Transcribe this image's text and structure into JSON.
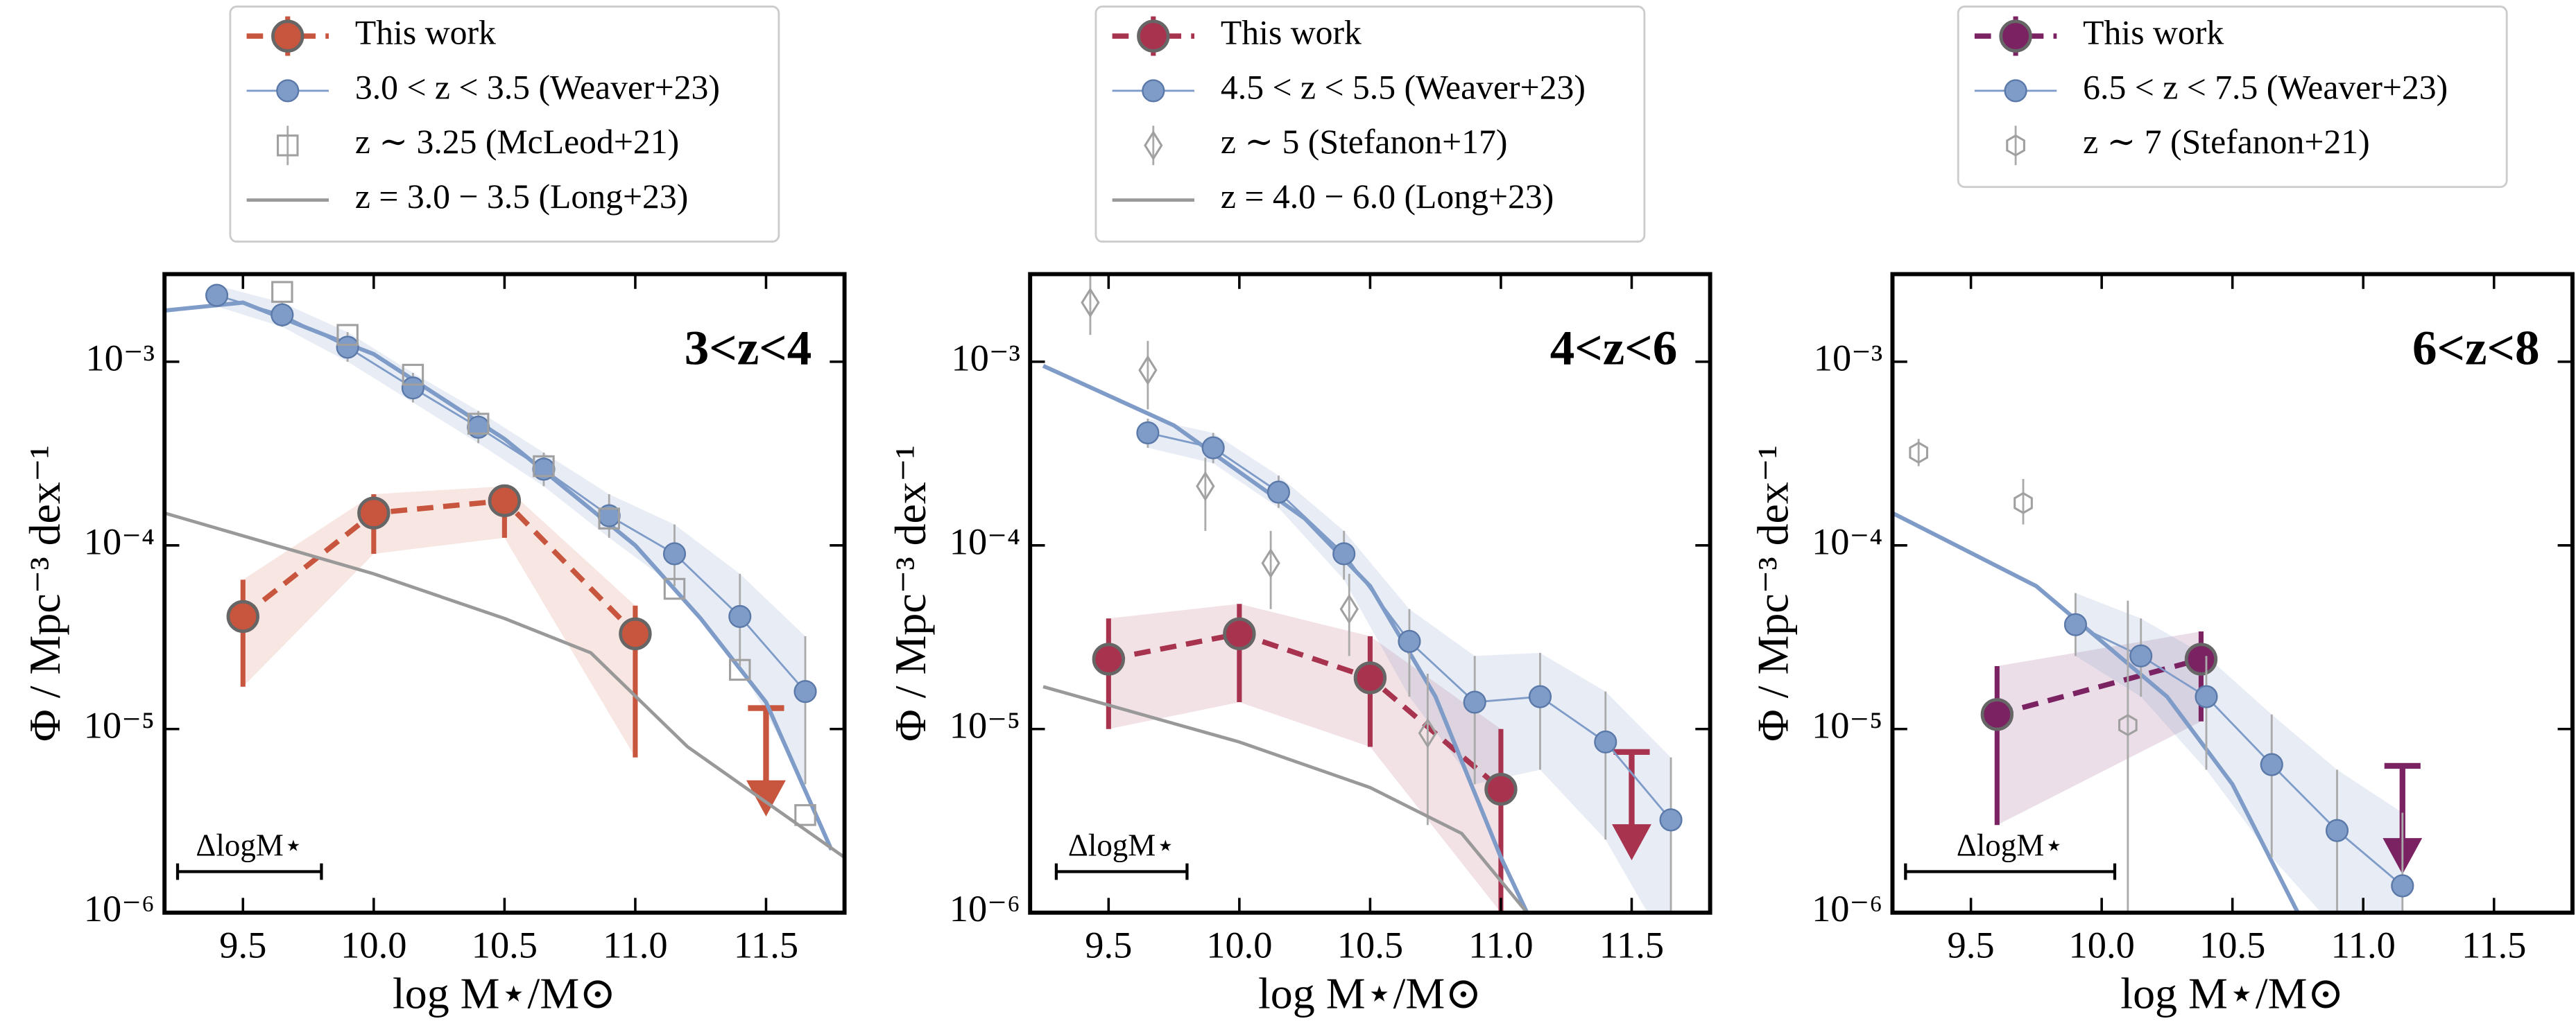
{
  "chart_data": [
    {
      "type": "line",
      "log_y": true,
      "title": "3<z<4",
      "title_color": "#c8553d",
      "x_label": "log M⋆/M⊙",
      "y_label": "Φ / Mpc⁻³ dex⁻¹",
      "xlim": [
        9.2,
        11.8
      ],
      "ylim": [
        1e-06,
        0.003
      ],
      "xticks": [
        9.5,
        {
          "value": 10,
          "label": "10.0"
        },
        10.5,
        {
          "value": 11,
          "label": "11.0"
        },
        11.5
      ],
      "yticks": [
        {
          "value": 1e-06,
          "label": "10⁻⁶"
        },
        {
          "value": 1e-05,
          "label": "10⁻⁵"
        },
        {
          "value": 0.0001,
          "label": "10⁻⁴"
        },
        {
          "value": 0.001,
          "label": "10⁻³"
        }
      ],
      "legend": "above",
      "resolution_bar": {
        "label": "ΔlogM⋆",
        "x": [
          9.25,
          9.8
        ]
      },
      "series": [
        {
          "name": "This work",
          "color": "#c8553d",
          "marker": "circle",
          "line": "dashed",
          "x": [
            9.5,
            10,
            10.5,
            11
          ],
          "values": [
            4.1e-05,
            0.00015,
            0.000175,
            3.3e-05
          ],
          "lower": [
            1.7e-05,
            9e-05,
            0.00011,
            7e-06
          ],
          "upper": [
            6.5e-05,
            0.00019,
            0.00021,
            4.7e-05
          ],
          "upper_limit": {
            "x": 11.5,
            "value": 1.3e-05
          }
        },
        {
          "name": "3.0 < z < 3.5 (Weaver+23)",
          "color": "#7f9cc8",
          "marker": "circle",
          "line": "solid",
          "x": [
            9.4,
            9.65,
            9.9,
            10.15,
            10.4,
            10.65,
            10.9,
            11.15,
            11.4,
            11.65
          ],
          "values": [
            0.0023,
            0.0018,
            0.0012,
            0.00072,
            0.00044,
            0.00026,
            0.000145,
            9e-05,
            4.1e-05,
            1.6e-05
          ],
          "lower": [
            0.002,
            0.00155,
            0.001,
            0.0006,
            0.00036,
            0.00021,
            0.00011,
            6e-05,
            2.2e-05,
            5e-06
          ],
          "upper": [
            0.0026,
            0.0021,
            0.00145,
            0.00087,
            0.00054,
            0.00032,
            0.00019,
            0.00013,
            7e-05,
            3.2e-05
          ],
          "fit": {
            "x": [
              9.2,
              9.5,
              10,
              10.5,
              11,
              11.25,
              11.5,
              11.75
            ],
            "values": [
              0.0019,
              0.0021,
              0.0011,
              0.00038,
              0.0001,
              4e-05,
              1.4e-05,
              2.2e-06
            ]
          }
        },
        {
          "name": "z ∼ 3.25 (McLeod+21)",
          "color": "#a0a0a0",
          "marker": "square",
          "line": "none",
          "x": [
            9.65,
            9.9,
            10.15,
            10.4,
            10.65,
            10.9,
            11.15,
            11.4,
            11.65
          ],
          "values": [
            0.0024,
            0.0014,
            0.00085,
            0.00046,
            0.00027,
            0.00014,
            5.8e-05,
            2.1e-05,
            3.4e-06
          ]
        },
        {
          "name": "z = 3.0 − 3.5 (Long+23)",
          "color": "#999999",
          "marker": "none",
          "line": "solid",
          "x": [
            9.2,
            10,
            10.5,
            10.83,
            11.2,
            11.8
          ],
          "values": [
            0.00015,
            7e-05,
            4e-05,
            2.6e-05,
            8e-06,
            2e-06
          ]
        }
      ]
    },
    {
      "type": "line",
      "log_y": true,
      "title": "4<z<6",
      "title_color": "#a8334f",
      "x_label": "log M⋆/M⊙",
      "y_label": "Φ / Mpc⁻³ dex⁻¹",
      "xlim": [
        9.2,
        11.8
      ],
      "ylim": [
        1e-06,
        0.003
      ],
      "xticks": [
        9.5,
        {
          "value": 10,
          "label": "10.0"
        },
        10.5,
        {
          "value": 11,
          "label": "11.0"
        },
        11.5
      ],
      "yticks": [
        {
          "value": 1e-06,
          "label": "10⁻⁶"
        },
        {
          "value": 1e-05,
          "label": "10⁻⁵"
        },
        {
          "value": 0.0001,
          "label": "10⁻⁴"
        },
        {
          "value": 0.001,
          "label": "10⁻³"
        }
      ],
      "legend": "above",
      "resolution_bar": {
        "label": "ΔlogM⋆",
        "x": [
          9.3,
          9.8
        ]
      },
      "series": [
        {
          "name": "This work",
          "color": "#a8334f",
          "marker": "circle",
          "line": "dashed",
          "x": [
            9.5,
            10,
            10.5,
            11
          ],
          "values": [
            2.4e-05,
            3.3e-05,
            1.9e-05,
            4.7e-06
          ],
          "lower": [
            1e-05,
            1.4e-05,
            8e-06,
            1e-06
          ],
          "upper": [
            4e-05,
            4.8e-05,
            3.2e-05,
            1e-05
          ],
          "upper_limit": {
            "x": 11.5,
            "value": 7.5e-06
          }
        },
        {
          "name": "4.5 < z < 5.5 (Weaver+23)",
          "color": "#7f9cc8",
          "marker": "circle",
          "line": "solid",
          "x": [
            9.65,
            9.9,
            10.15,
            10.4,
            10.65,
            10.9,
            11.15,
            11.4,
            11.65
          ],
          "values": [
            0.00041,
            0.00034,
            0.000195,
            9e-05,
            3e-05,
            1.4e-05,
            1.5e-05,
            8.5e-06,
            3.2e-06
          ],
          "lower": [
            0.00034,
            0.00028,
            0.00016,
            6.5e-05,
            1.5e-05,
            5e-06,
            6e-06,
            2.5e-06,
            6e-07
          ],
          "upper": [
            0.00049,
            0.00041,
            0.00024,
            0.00012,
            4.5e-05,
            2.5e-05,
            2.6e-05,
            1.6e-05,
            7e-06
          ],
          "fit": {
            "x": [
              9.25,
              9.75,
              10.25,
              10.5,
              10.75,
              11,
              11.1
            ],
            "values": [
              0.00095,
              0.00045,
              0.00014,
              6e-05,
              1.5e-05,
              2e-06,
              1e-06
            ]
          }
        },
        {
          "name": "z ∼ 5 (Stefanon+17)",
          "color": "#a0a0a0",
          "marker": "diamond",
          "line": "none",
          "x": [
            9.43,
            9.65,
            9.87,
            10.12,
            10.42,
            10.72
          ],
          "values": [
            0.0021,
            0.0009,
            0.00021,
            8e-05,
            4.5e-05,
            9.5e-06
          ],
          "lower": [
            0.0014,
            0.00055,
            0.00012,
            4.5e-05,
            2.5e-05,
            3e-06
          ],
          "upper": [
            0.003,
            0.0013,
            0.0003,
            0.00012,
            7e-05,
            2e-05
          ]
        },
        {
          "name": "z = 4.0 − 6.0 (Long+23)",
          "color": "#999999",
          "marker": "none",
          "line": "solid",
          "x": [
            9.25,
            10,
            10.5,
            10.85,
            11.1
          ],
          "values": [
            1.7e-05,
            8.5e-06,
            4.8e-06,
            2.7e-06,
            1e-06
          ]
        }
      ]
    },
    {
      "type": "line",
      "log_y": true,
      "title": "6<z<8",
      "title_color": "#7b2263",
      "x_label": "log M⋆/M⊙",
      "y_label": "Φ / Mpc⁻³ dex⁻¹",
      "xlim": [
        9.2,
        11.8
      ],
      "ylim": [
        1e-06,
        0.003
      ],
      "xticks": [
        9.5,
        {
          "value": 10,
          "label": "10.0"
        },
        10.5,
        {
          "value": 11,
          "label": "11.0"
        },
        11.5
      ],
      "yticks": [
        {
          "value": 1e-06,
          "label": "10⁻⁶"
        },
        {
          "value": 1e-05,
          "label": "10⁻⁵"
        },
        {
          "value": 0.0001,
          "label": "10⁻⁴"
        },
        {
          "value": 0.001,
          "label": "10⁻³"
        }
      ],
      "legend": "above",
      "resolution_bar": {
        "label": "ΔlogM⋆",
        "x": [
          9.25,
          10.05
        ]
      },
      "series": [
        {
          "name": "This work",
          "color": "#7b2263",
          "marker": "circle",
          "line": "dashed",
          "x": [
            9.6,
            10.38
          ],
          "values": [
            1.2e-05,
            2.4e-05
          ],
          "lower": [
            3e-06,
            1.1e-05
          ],
          "upper": [
            2.2e-05,
            3.4e-05
          ],
          "upper_limit": {
            "x": 11.15,
            "value": 6.3e-06
          }
        },
        {
          "name": "6.5 < z < 7.5 (Weaver+23)",
          "color": "#7f9cc8",
          "marker": "circle",
          "line": "solid",
          "x": [
            9.9,
            10.15,
            10.4,
            10.65,
            10.9,
            11.15
          ],
          "values": [
            3.7e-05,
            2.5e-05,
            1.5e-05,
            6.4e-06,
            2.8e-06,
            1.4e-06
          ],
          "lower": [
            2.5e-05,
            1.5e-05,
            6e-06,
            2e-06,
            8e-07,
            5e-07
          ],
          "upper": [
            5.5e-05,
            4e-05,
            2.5e-05,
            1.2e-05,
            6e-06,
            3.5e-06
          ],
          "fit": {
            "x": [
              9.2,
              9.75,
              10.25,
              10.5,
              10.75
            ],
            "values": [
              0.00015,
              6e-05,
              1.5e-05,
              5e-06,
              1e-06
            ]
          }
        },
        {
          "name": "z ∼ 7 (Stefanon+21)",
          "color": "#a0a0a0",
          "marker": "hexagon",
          "line": "none",
          "x": [
            9.3,
            9.7,
            10.1
          ],
          "values": [
            0.00032,
            0.00017,
            1.05e-05
          ],
          "lower": [
            0.00027,
            0.00013,
            8e-07
          ],
          "upper": [
            0.00038,
            0.00023,
            5e-05
          ]
        }
      ]
    }
  ]
}
